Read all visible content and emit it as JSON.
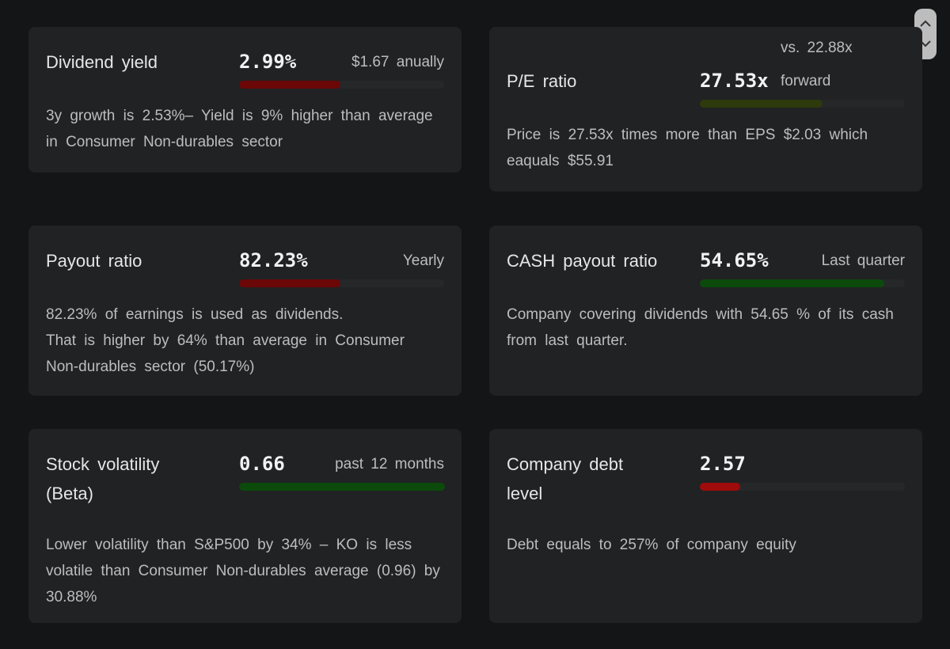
{
  "cards": [
    {
      "title": "Dividend yield",
      "value": "2.99%",
      "note": "$1.67 anually",
      "description": [
        "3y growth is 2.53%– Yield is 9% higher than average in Consumer Non-durables sector"
      ]
    },
    {
      "title": "P/E ratio",
      "value": "27.53x",
      "note_top": "vs. 22.88x",
      "note": "forward",
      "description": [
        "Price is 27.53x times more than EPS $2.03 which eaquals $55.91"
      ]
    },
    {
      "title": "Payout ratio",
      "value": "82.23%",
      "note": "Yearly",
      "description": [
        "82.23% of earnings is used as dividends.",
        "That is higher by 64% than average in Consumer Non-durables sector (50.17%)"
      ]
    },
    {
      "title": "CASH payout ratio",
      "value": "54.65%",
      "note": "Last quarter",
      "description": [
        "Company covering dividends with 54.65 % of its cash from last quarter."
      ]
    },
    {
      "title": "Stock volatility (Beta)",
      "value": "0.66",
      "note": "past 12 months",
      "description": [
        "Lower volatility than S&P500 by 34% – KO is less volatile than Consumer Non-durables average (0.96) by 30.88%"
      ]
    },
    {
      "title": "Company debt level",
      "value": "2.57",
      "description": [
        "Debt equals to 257% of company equity"
      ]
    }
  ]
}
